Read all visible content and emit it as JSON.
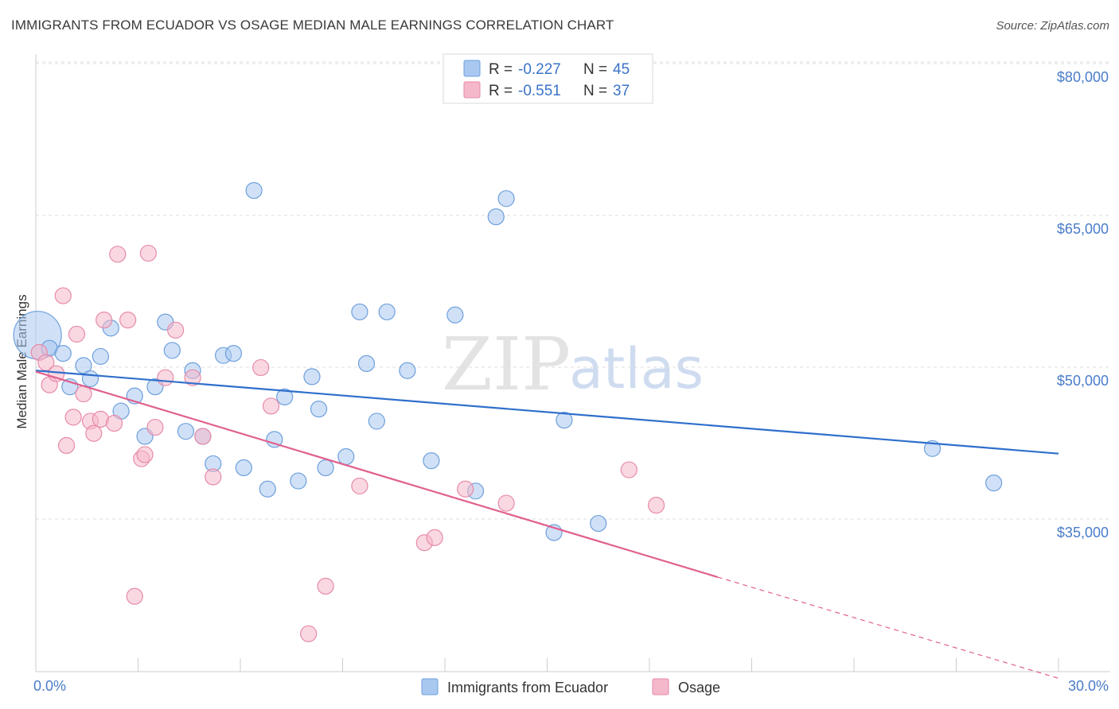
{
  "title": "IMMIGRANTS FROM ECUADOR VS OSAGE MEDIAN MALE EARNINGS CORRELATION CHART",
  "source": "Source: ZipAtlas.com",
  "watermark": {
    "zip": "ZIP",
    "atlas": "atlas"
  },
  "legend": [
    {
      "r_label": "R = ",
      "r_value": "-0.227",
      "n_label": "N = ",
      "n_value": "45",
      "color": "#a9c8f0"
    },
    {
      "r_label": "R = ",
      "r_value": "-0.551",
      "n_label": "N = ",
      "n_value": "37",
      "color": "#f5b8cb"
    }
  ],
  "chart_data": {
    "type": "scatter",
    "ylabel": "Median Male Earnings",
    "xlabel": "",
    "xlim": [
      0,
      30
    ],
    "ylim": [
      20000,
      82000
    ],
    "x_tick_labels": [
      "0.0%",
      "30.0%"
    ],
    "y_ticks": [
      35000,
      50000,
      65000,
      80000
    ],
    "y_tick_labels": [
      "$35,000",
      "$50,000",
      "$65,000",
      "$80,000"
    ],
    "grid": true,
    "legend_position": "top-center",
    "series": [
      {
        "name": "Immigrants from Ecuador",
        "color": "#a9c8f0",
        "stroke": "#6d9fdc",
        "trend_color": "#2f6fcc",
        "trend": {
          "x0": 0,
          "y0": 51000,
          "x1": 30,
          "y1": 42800
        },
        "points": [
          [
            0.05,
            54500
          ],
          [
            0.4,
            53200
          ],
          [
            0.8,
            52700
          ],
          [
            1.0,
            49400
          ],
          [
            1.4,
            51500
          ],
          [
            1.6,
            50200
          ],
          [
            1.9,
            52400
          ],
          [
            2.2,
            55200
          ],
          [
            2.5,
            47000
          ],
          [
            2.9,
            48500
          ],
          [
            3.2,
            44500
          ],
          [
            3.5,
            49400
          ],
          [
            3.8,
            55800
          ],
          [
            4.0,
            53000
          ],
          [
            4.4,
            45000
          ],
          [
            4.6,
            51000
          ],
          [
            4.9,
            44500
          ],
          [
            5.2,
            41800
          ],
          [
            5.5,
            52500
          ],
          [
            5.8,
            52700
          ],
          [
            6.1,
            41400
          ],
          [
            6.4,
            68800
          ],
          [
            6.8,
            39300
          ],
          [
            7.0,
            44200
          ],
          [
            7.3,
            48400
          ],
          [
            7.7,
            40100
          ],
          [
            8.1,
            50400
          ],
          [
            8.3,
            47200
          ],
          [
            8.5,
            41400
          ],
          [
            9.1,
            42500
          ],
          [
            9.5,
            56800
          ],
          [
            9.7,
            51700
          ],
          [
            10.0,
            46000
          ],
          [
            10.3,
            56800
          ],
          [
            10.9,
            51000
          ],
          [
            11.6,
            42100
          ],
          [
            12.3,
            56500
          ],
          [
            12.9,
            39100
          ],
          [
            13.5,
            66200
          ],
          [
            13.8,
            68000
          ],
          [
            15.2,
            35000
          ],
          [
            15.5,
            46100
          ],
          [
            16.5,
            35900
          ],
          [
            26.3,
            43300
          ],
          [
            28.1,
            39900
          ]
        ],
        "sizes": [
          30,
          10,
          10,
          10,
          10,
          10,
          10,
          10,
          10,
          10,
          10,
          10,
          10,
          10,
          10,
          10,
          10,
          10,
          10,
          10,
          10,
          10,
          10,
          10,
          10,
          10,
          10,
          10,
          10,
          10,
          10,
          10,
          10,
          10,
          10,
          10,
          10,
          10,
          10,
          10,
          10,
          10,
          10,
          10,
          10
        ]
      },
      {
        "name": "Osage",
        "color": "#f5b8cb",
        "stroke": "#e68aa8",
        "trend_color": "#e0608e",
        "trend": {
          "x0": 0,
          "y0": 50900,
          "x1": 20.0,
          "y1": 30600
        },
        "trend_dash": {
          "x0": 20.0,
          "y0": 30600,
          "x1": 30,
          "y1": 20600
        },
        "points": [
          [
            0.1,
            52800
          ],
          [
            0.3,
            51800
          ],
          [
            0.4,
            49600
          ],
          [
            0.6,
            50700
          ],
          [
            0.8,
            58400
          ],
          [
            0.9,
            43600
          ],
          [
            1.1,
            46400
          ],
          [
            1.2,
            54600
          ],
          [
            1.4,
            48700
          ],
          [
            1.6,
            46000
          ],
          [
            1.7,
            44800
          ],
          [
            1.9,
            46200
          ],
          [
            2.0,
            56000
          ],
          [
            2.3,
            45800
          ],
          [
            2.4,
            62500
          ],
          [
            2.7,
            56000
          ],
          [
            2.9,
            28700
          ],
          [
            3.1,
            42300
          ],
          [
            3.2,
            42700
          ],
          [
            3.3,
            62600
          ],
          [
            3.5,
            45400
          ],
          [
            3.8,
            50300
          ],
          [
            4.1,
            55000
          ],
          [
            4.6,
            50300
          ],
          [
            4.9,
            44500
          ],
          [
            5.2,
            40500
          ],
          [
            6.6,
            51300
          ],
          [
            6.9,
            47500
          ],
          [
            8.0,
            25000
          ],
          [
            8.5,
            29700
          ],
          [
            9.5,
            39600
          ],
          [
            11.4,
            34000
          ],
          [
            11.7,
            34500
          ],
          [
            12.6,
            39300
          ],
          [
            13.8,
            37900
          ],
          [
            17.4,
            41200
          ],
          [
            18.2,
            37700
          ]
        ]
      }
    ]
  }
}
